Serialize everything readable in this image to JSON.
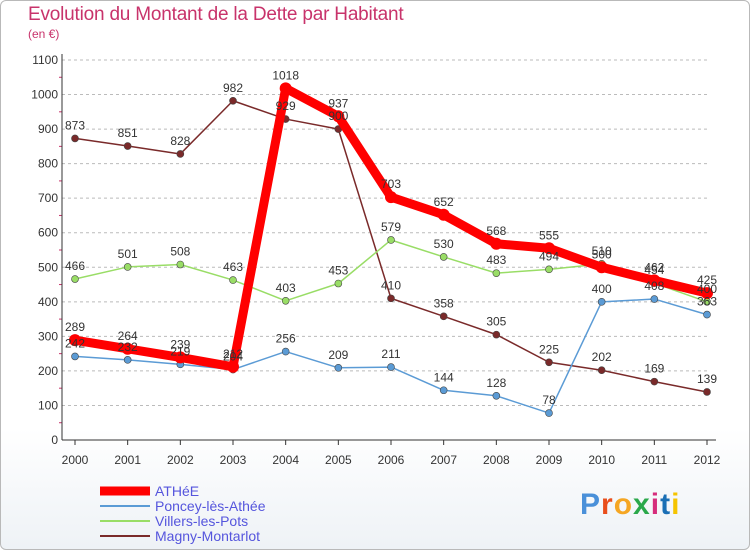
{
  "header": {
    "title": "Evolution du Montant de la Dette par Habitant",
    "subtitle": "(en €)"
  },
  "logo": {
    "text": "Proxiti"
  },
  "colors": {
    "title": "#c8336b",
    "legend_text": "#5555dd",
    "grid": "#bbbbbb"
  },
  "chart_data": {
    "type": "line",
    "title": "Evolution du Montant de la Dette par Habitant",
    "subtitle": "(en €)",
    "xlabel": "",
    "ylabel": "",
    "x": [
      "2000",
      "2001",
      "2002",
      "2003",
      "2004",
      "2005",
      "2006",
      "2007",
      "2008",
      "2009",
      "2010",
      "2011",
      "2012"
    ],
    "ylim": [
      0,
      1100
    ],
    "yticks": [
      0,
      100,
      200,
      300,
      400,
      500,
      600,
      700,
      800,
      900,
      1000,
      1100
    ],
    "grid": "horizontal dashed",
    "legend_position": "bottom-left",
    "series": [
      {
        "name": "ATHéE",
        "color": "#ff0000",
        "values": [
          289,
          264,
          239,
          212,
          1018,
          937,
          703,
          652,
          568,
          555,
          500,
          462,
          425
        ],
        "labels": [
          "289",
          "264",
          "239",
          "212",
          "1018",
          "937",
          "703",
          "652",
          "568",
          "555",
          "500",
          "462",
          "425"
        ]
      },
      {
        "name": "Poncey-lès-Athée",
        "color": "#5b9bd5",
        "values": [
          242,
          232,
          219,
          204,
          256,
          209,
          211,
          144,
          128,
          78,
          400,
          408,
          363
        ],
        "labels": [
          "242",
          "232",
          "219",
          "204",
          "256",
          "209",
          "211",
          "144",
          "128",
          "78",
          "400",
          "408",
          "363"
        ]
      },
      {
        "name": "Villers-les-Pots",
        "color": "#99dd66",
        "values": [
          466,
          501,
          508,
          463,
          403,
          453,
          579,
          530,
          483,
          494,
          510,
          454,
          400
        ],
        "labels": [
          "466",
          "501",
          "508",
          "463",
          "403",
          "453",
          "579",
          "530",
          "483",
          "494",
          "510",
          "454",
          "400"
        ]
      },
      {
        "name": "Magny-Montarlot",
        "color": "#7a2a2a",
        "values": [
          873,
          851,
          828,
          982,
          929,
          900,
          410,
          358,
          305,
          225,
          202,
          169,
          139
        ],
        "labels": [
          "873",
          "851",
          "828",
          "982",
          "929",
          "900",
          "410",
          "358",
          "305",
          "225",
          "202",
          "169",
          "139"
        ]
      }
    ]
  }
}
